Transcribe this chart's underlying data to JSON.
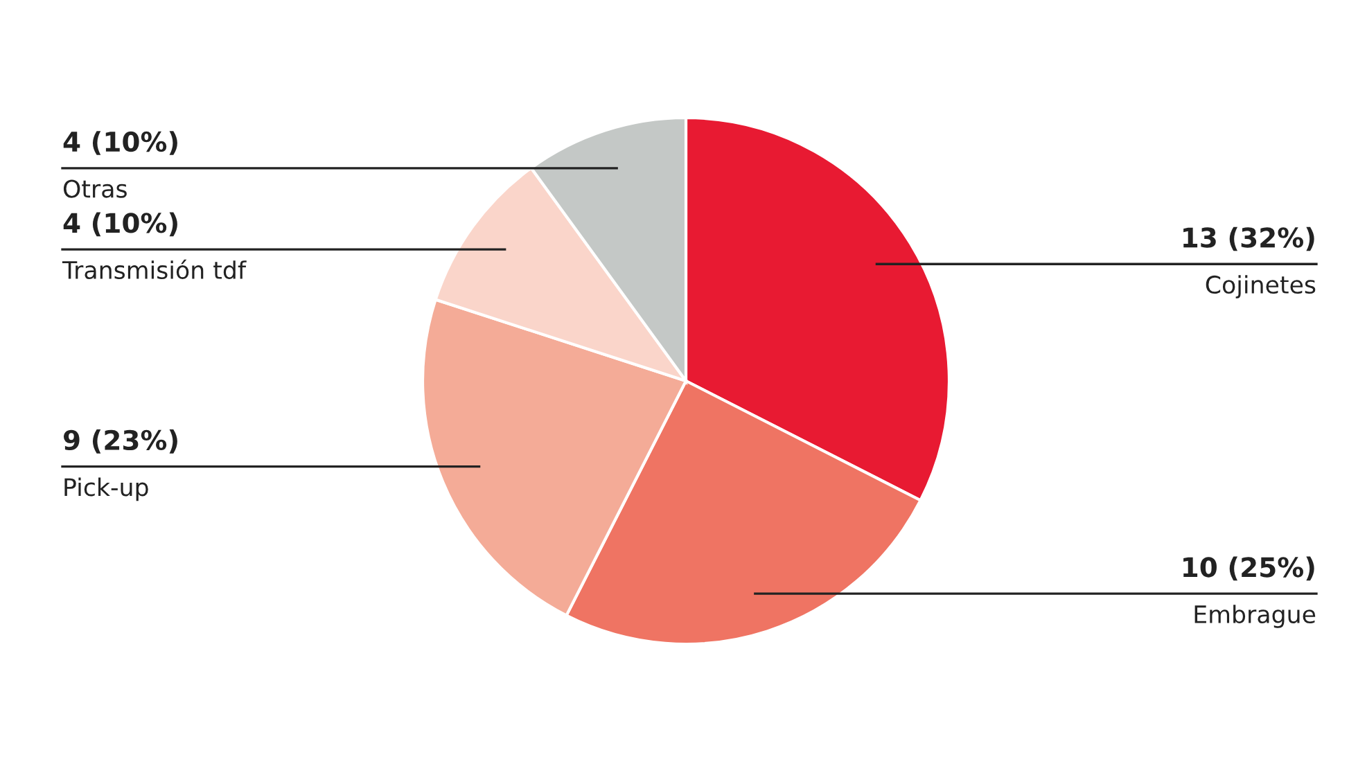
{
  "chart_data": {
    "type": "pie",
    "categories": [
      "Cojinetes",
      "Embrague",
      "Pick-up",
      "Transmisión tdf",
      "Otras"
    ],
    "values": [
      13,
      10,
      9,
      4,
      4
    ],
    "value_labels": [
      "13 (32%)",
      "10 (25%)",
      "9 (23%)",
      "4 (10%)",
      "4 (10%)"
    ],
    "colors": [
      "#e81a32",
      "#ef7463",
      "#f4ab97",
      "#fad5ca",
      "#c4c8c6"
    ]
  }
}
